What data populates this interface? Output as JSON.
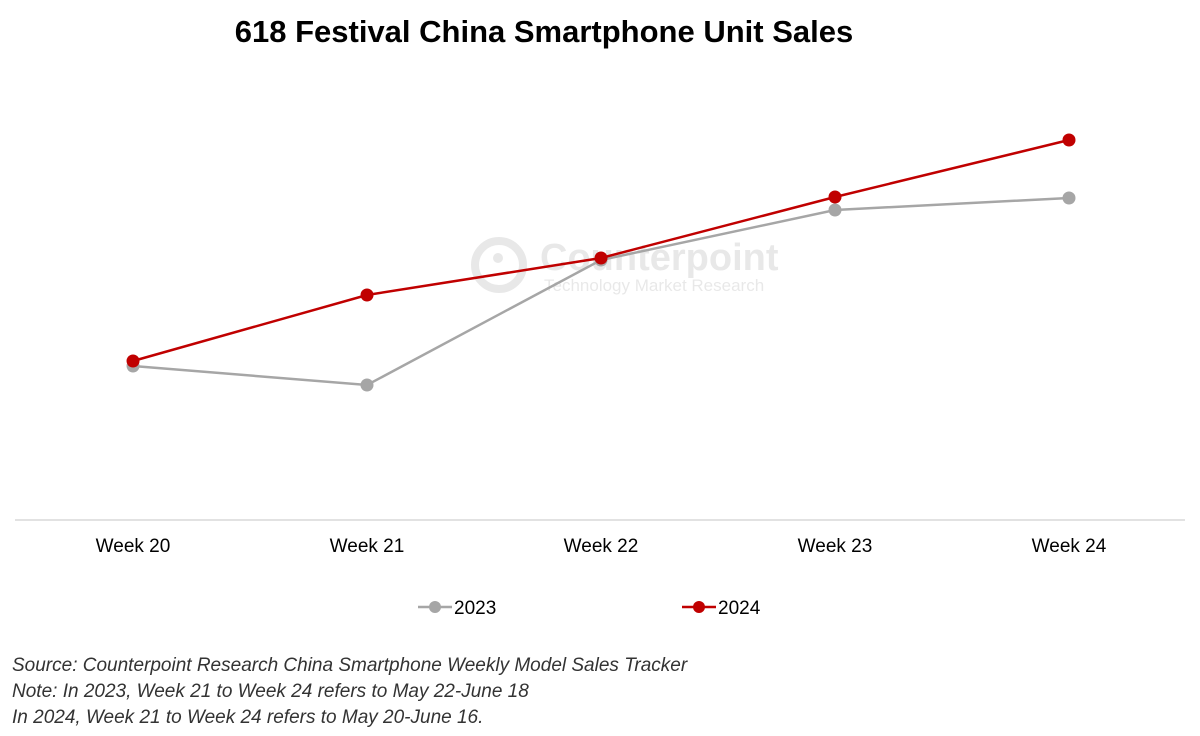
{
  "chart_data": {
    "type": "line",
    "title": "618 Festival China Smartphone Unit Sales",
    "xlabel": "",
    "ylabel": "",
    "categories": [
      "Week 20",
      "Week 21",
      "Week 22",
      "Week 23",
      "Week 24"
    ],
    "ylim": [
      0,
      400
    ],
    "y_axis_shown": false,
    "grid": false,
    "legend_position": "bottom",
    "series": [
      {
        "name": "2023",
        "color": "#a6a6a6",
        "values": [
          154,
          135,
          260,
          310,
          322
        ]
      },
      {
        "name": "2024",
        "color": "#c00000",
        "values": [
          159,
          225,
          262,
          323,
          380
        ]
      }
    ],
    "watermark": {
      "brand": "Counterpoint",
      "tagline": "Technology Market Research"
    }
  },
  "notes": [
    "Source: Counterpoint Research China Smartphone Weekly Model Sales Tracker",
    "Note: In 2023, Week 21 to Week 24 refers to May 22-June 18",
    "In 2024, Week 21 to Week 24 refers to May 20-June 16."
  ]
}
